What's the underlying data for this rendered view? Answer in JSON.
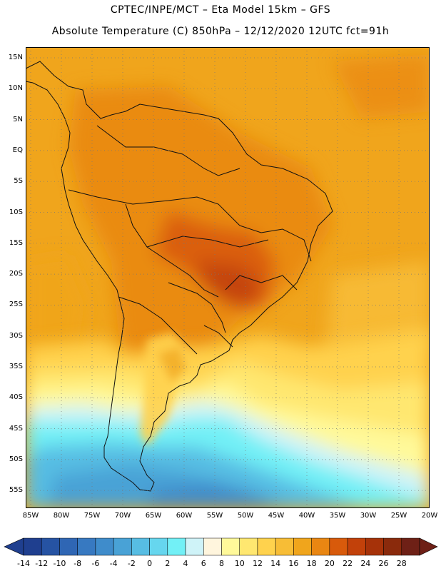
{
  "header": {
    "line1": "CPTEC/INPE/MCT –  Eta Model 15km – GFS",
    "line2": "Absolute Temperature (C) 850hPa – 12/12/2020 12UTC fct=91h"
  },
  "map": {
    "lat_labels": [
      "15N",
      "10N",
      "5N",
      "EQ",
      "5S",
      "10S",
      "15S",
      "20S",
      "25S",
      "30S",
      "35S",
      "40S",
      "45S",
      "50S",
      "55S"
    ],
    "lon_labels": [
      "85W",
      "80W",
      "75W",
      "70W",
      "65W",
      "60W",
      "55W",
      "50W",
      "45W",
      "40W",
      "35W",
      "30W",
      "25W",
      "20W"
    ]
  },
  "colorbar": {
    "labels": [
      "-14",
      "-12",
      "-10",
      "-8",
      "-6",
      "-4",
      "-2",
      "0",
      "2",
      "4",
      "6",
      "8",
      "10",
      "12",
      "14",
      "16",
      "18",
      "20",
      "22",
      "24",
      "26",
      "28"
    ],
    "colors": [
      "#1f3f8f",
      "#2653a3",
      "#2f66b4",
      "#3779c1",
      "#3f8ccb",
      "#49a2d6",
      "#57bde3",
      "#66d6ee",
      "#72f0f6",
      "#cff3f8",
      "#fff5dd",
      "#fff99a",
      "#ffe770",
      "#ffd24d",
      "#f7bd36",
      "#f0a51c",
      "#e98612",
      "#d85a0b",
      "#c2410a",
      "#a63209",
      "#8a2a0c",
      "#6e2016"
    ]
  }
}
